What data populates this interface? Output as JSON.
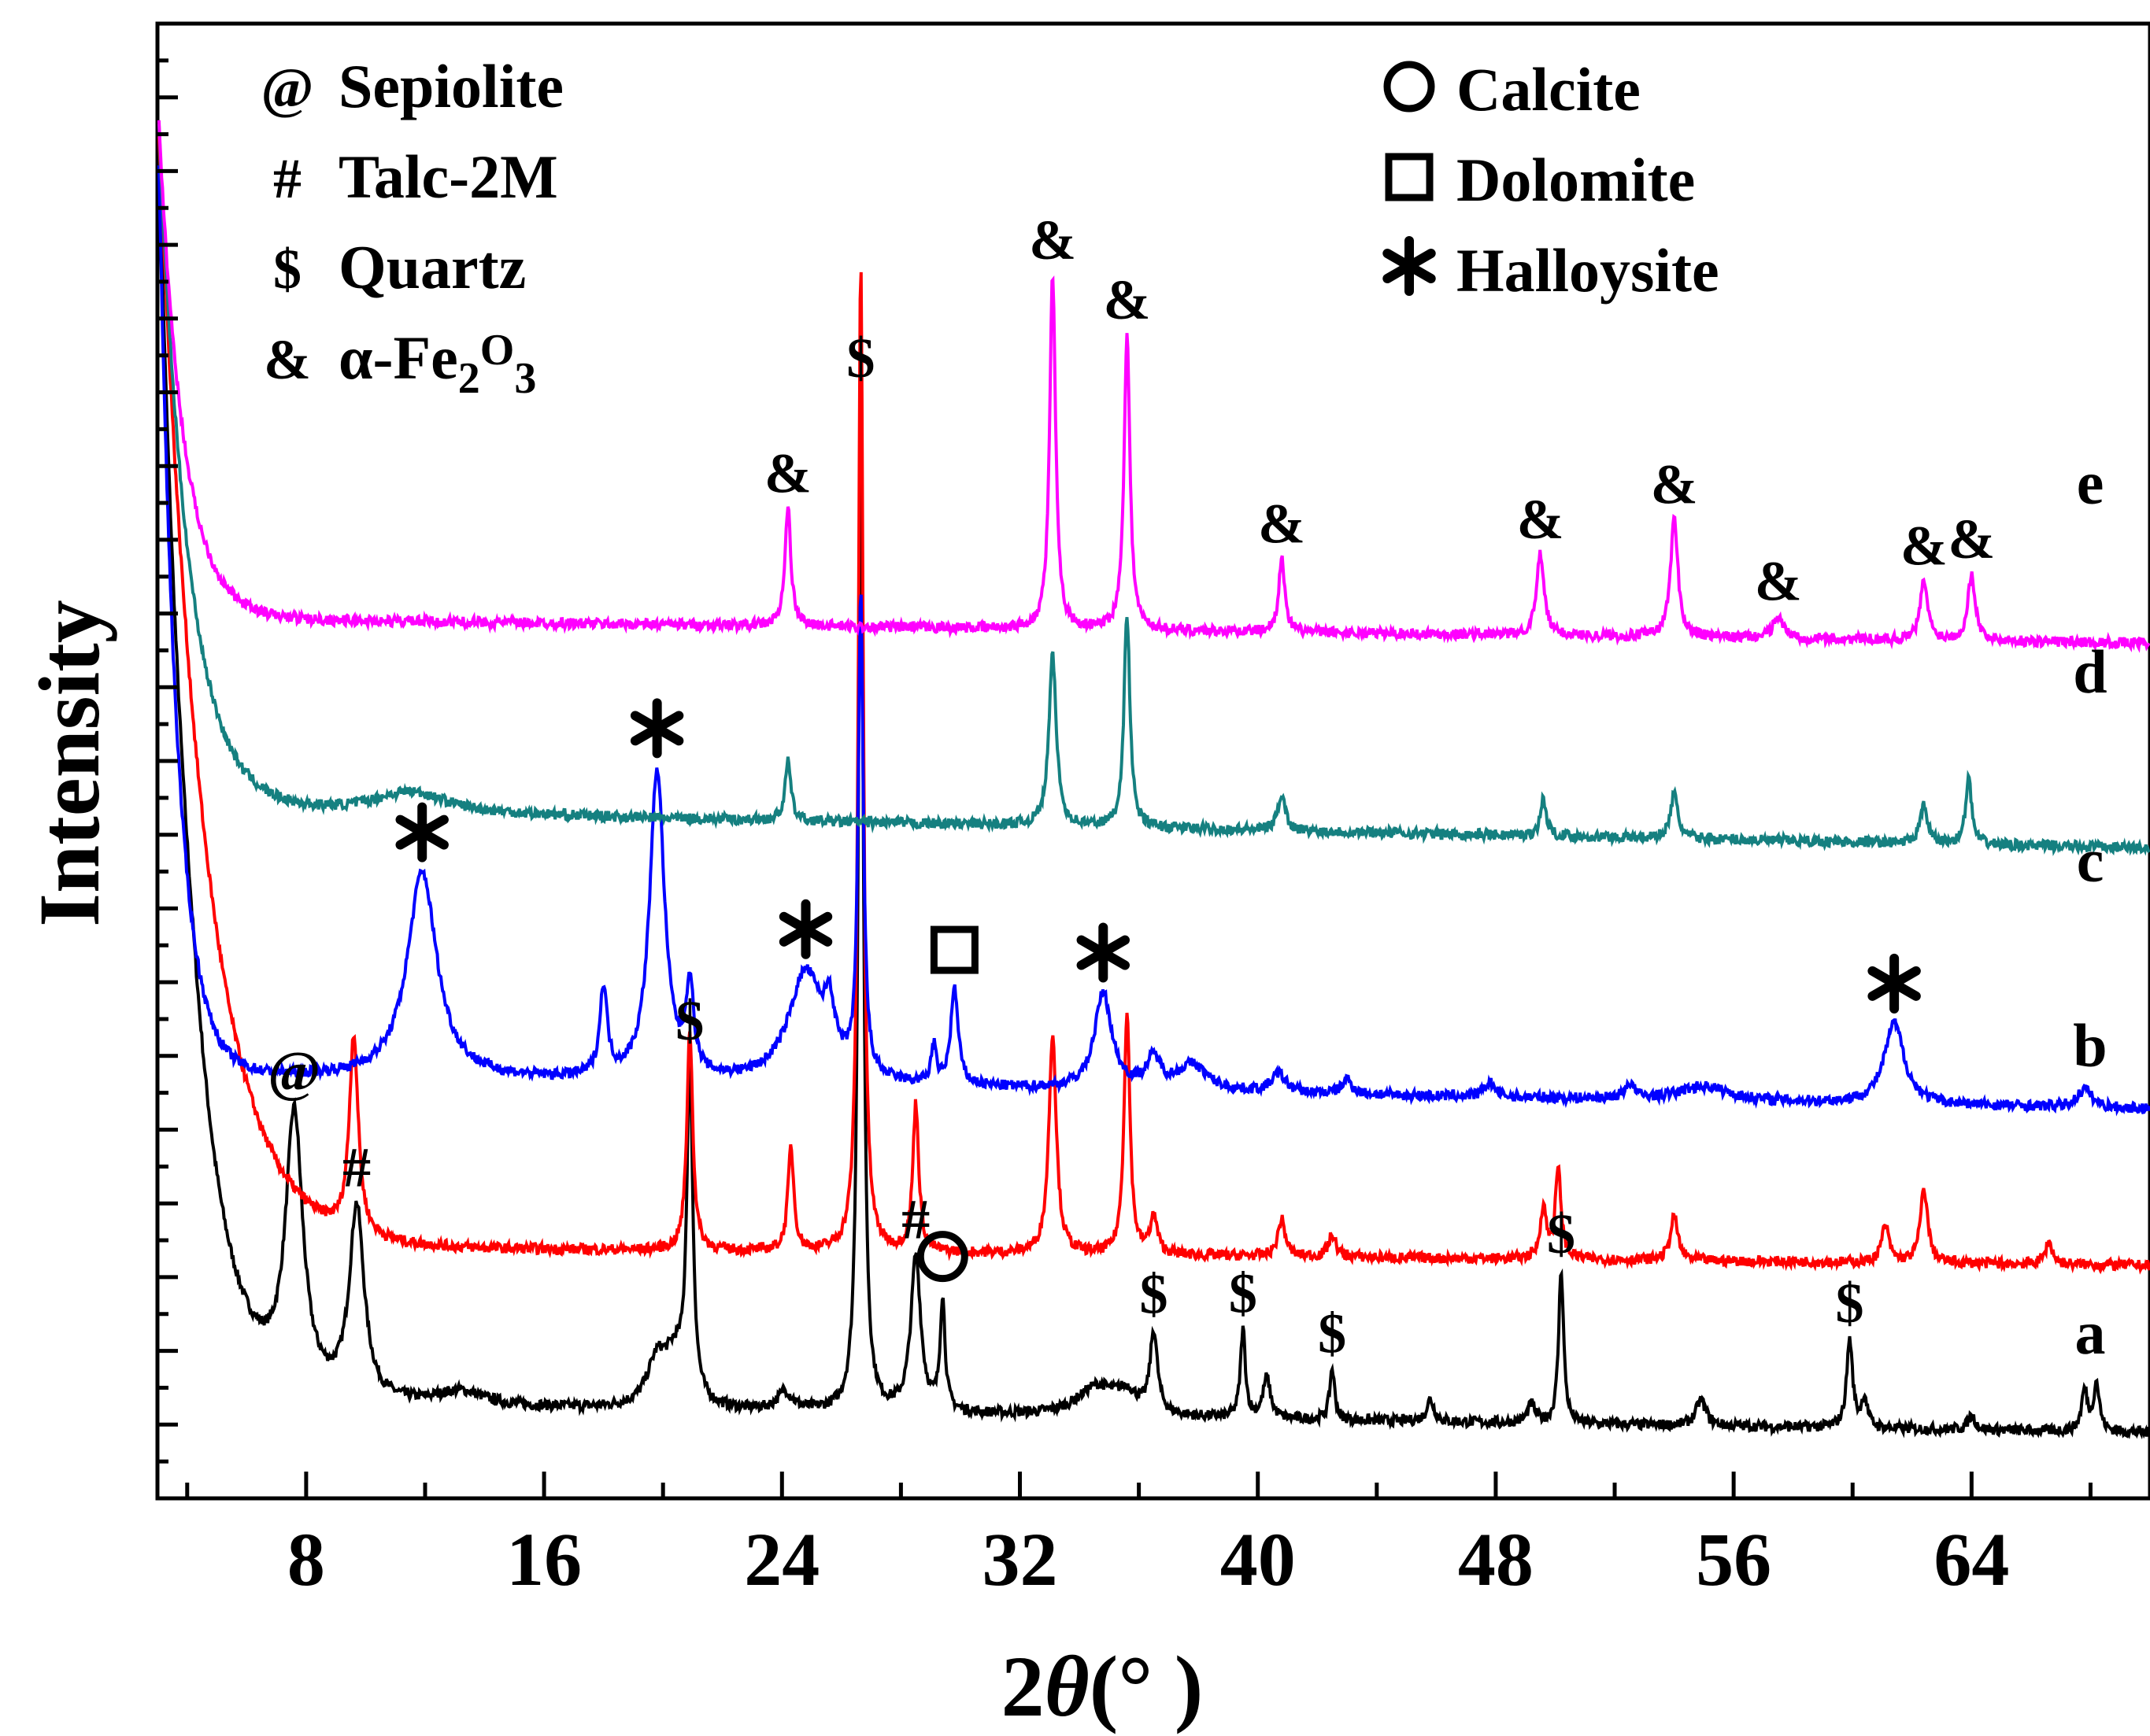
{
  "chart_data": {
    "type": "line",
    "xlabel": "2θ(° )",
    "ylabel": "Intensity",
    "xlim": [
      3,
      70
    ],
    "xticks": [
      8,
      16,
      24,
      32,
      40,
      48,
      56,
      64
    ],
    "xtick_labels": [
      "8",
      "16",
      "24",
      "32",
      "40",
      "48",
      "56",
      "64"
    ],
    "yticks_labelled": false,
    "legend": {
      "left": [
        {
          "symbol": "@",
          "label": "Sepiolite"
        },
        {
          "symbol": "#",
          "label": "Talc-2M"
        },
        {
          "symbol": "$",
          "label": "Quartz"
        },
        {
          "symbol": "&",
          "label": "α-Fe2O3"
        }
      ],
      "right": [
        {
          "symbol": "circle",
          "label": "Calcite"
        },
        {
          "symbol": "square",
          "label": "Dolomite"
        },
        {
          "symbol": "star",
          "label": "Halloysite"
        }
      ]
    },
    "series": [
      {
        "name": "a",
        "color": "#000000",
        "start_level": 1880,
        "base_level": 125,
        "decay": 0.9,
        "slope": -0.6,
        "peaks": [
          [
            4.1,
            45,
            0.6
          ],
          [
            7.6,
            370,
            0.35
          ],
          [
            9.7,
            260,
            0.3
          ],
          [
            13.2,
            20,
            1.0
          ],
          [
            19.8,
            60,
            0.4
          ],
          [
            20.4,
            60,
            0.4
          ],
          [
            20.9,
            450,
            0.12
          ],
          [
            24.1,
            25,
            0.3
          ],
          [
            26.65,
            1380,
            0.1
          ],
          [
            28.5,
            210,
            0.2
          ],
          [
            29.4,
            150,
            0.1
          ],
          [
            34.6,
            40,
            0.8
          ],
          [
            35.6,
            25,
            0.4
          ],
          [
            36.5,
            110,
            0.15
          ],
          [
            39.5,
            120,
            0.1
          ],
          [
            40.3,
            55,
            0.15
          ],
          [
            42.5,
            70,
            0.1
          ],
          [
            45.8,
            30,
            0.15
          ],
          [
            49.2,
            25,
            0.15
          ],
          [
            50.2,
            210,
            0.1
          ],
          [
            54.9,
            35,
            0.2
          ],
          [
            59.9,
            120,
            0.12
          ],
          [
            60.4,
            40,
            0.12
          ],
          [
            64.0,
            20,
            0.15
          ],
          [
            67.8,
            55,
            0.12
          ],
          [
            68.2,
            65,
            0.12
          ]
        ],
        "marker_labels": [
          {
            "symbol": "@",
            "x": 7.6
          },
          {
            "symbol": "#",
            "x": 9.7
          },
          {
            "symbol": "$",
            "x": 20.9
          },
          {
            "symbol": "#",
            "x": 28.5
          },
          {
            "symbol": "circle",
            "x": 29.4
          },
          {
            "symbol": "$",
            "x": 36.5
          },
          {
            "symbol": "$",
            "x": 39.5
          },
          {
            "symbol": "$",
            "x": 42.5
          },
          {
            "symbol": "$",
            "x": 50.2
          },
          {
            "symbol": "$",
            "x": 59.9
          }
        ]
      },
      {
        "name": "b",
        "color": "#ff0000",
        "start_level": 1900,
        "base_level": 340,
        "decay": 0.65,
        "slope": -0.4,
        "peaks": [
          [
            9.6,
            270,
            0.18
          ],
          [
            20.9,
            300,
            0.12
          ],
          [
            24.3,
            140,
            0.12
          ],
          [
            26.65,
            1340,
            0.1
          ],
          [
            28.5,
            200,
            0.12
          ],
          [
            33.1,
            300,
            0.15
          ],
          [
            35.6,
            330,
            0.12
          ],
          [
            36.5,
            50,
            0.15
          ],
          [
            40.8,
            50,
            0.15
          ],
          [
            42.5,
            30,
            0.15
          ],
          [
            49.6,
            70,
            0.12
          ],
          [
            50.1,
            120,
            0.12
          ],
          [
            54.0,
            60,
            0.15
          ],
          [
            61.1,
            50,
            0.15
          ],
          [
            62.4,
            100,
            0.15
          ],
          [
            66.6,
            30,
            0.15
          ]
        ],
        "marker_labels": []
      },
      {
        "name": "c",
        "color": "#0000ff",
        "start_level": 1900,
        "base_level": 570,
        "decay": 1.6,
        "slope": -0.7,
        "peaks": [
          [
            11.9,
            280,
            0.6
          ],
          [
            18.0,
            120,
            0.15
          ],
          [
            19.8,
            420,
            0.3
          ],
          [
            20.9,
            120,
            0.15
          ],
          [
            24.8,
            150,
            0.7
          ],
          [
            25.6,
            70,
            0.2
          ],
          [
            26.65,
            650,
            0.1
          ],
          [
            29.1,
            50,
            0.1
          ],
          [
            29.8,
            130,
            0.15
          ],
          [
            34.8,
            130,
            0.35
          ],
          [
            36.5,
            40,
            0.3
          ],
          [
            37.8,
            35,
            0.6
          ],
          [
            40.7,
            25,
            0.3
          ],
          [
            43.0,
            20,
            0.2
          ],
          [
            47.8,
            20,
            0.2
          ],
          [
            52.5,
            20,
            0.2
          ],
          [
            55.0,
            20,
            1.0
          ],
          [
            61.4,
            110,
            0.4
          ],
          [
            67.8,
            25,
            0.3
          ]
        ],
        "marker_labels": [
          {
            "symbol": "star",
            "x": 11.9
          },
          {
            "symbol": "star",
            "x": 19.8
          },
          {
            "symbol": "star",
            "x": 24.8
          },
          {
            "symbol": "square",
            "x": 29.8
          },
          {
            "symbol": "star",
            "x": 34.8
          },
          {
            "symbol": "star",
            "x": 61.4
          }
        ]
      },
      {
        "name": "d",
        "color": "#158080",
        "start_level": 1900,
        "base_level": 930,
        "decay": 1.0,
        "slope": -0.8,
        "peaks": [
          [
            11.5,
            30,
            1.5
          ],
          [
            24.2,
            80,
            0.12
          ],
          [
            33.1,
            230,
            0.15
          ],
          [
            35.6,
            290,
            0.12
          ],
          [
            40.8,
            50,
            0.15
          ],
          [
            49.6,
            50,
            0.12
          ],
          [
            54.0,
            60,
            0.15
          ],
          [
            62.4,
            50,
            0.15
          ],
          [
            63.9,
            90,
            0.12
          ]
        ],
        "marker_labels": []
      },
      {
        "name": "e",
        "color": "#ff00ff",
        "start_level": 1900,
        "base_level": 1190,
        "decay": 1.2,
        "slope": -0.5,
        "peaks": [
          [
            24.2,
            160,
            0.12
          ],
          [
            33.1,
            480,
            0.12
          ],
          [
            35.6,
            400,
            0.12
          ],
          [
            40.8,
            100,
            0.12
          ],
          [
            49.5,
            110,
            0.15
          ],
          [
            54.0,
            160,
            0.15
          ],
          [
            57.5,
            30,
            0.2
          ],
          [
            62.4,
            80,
            0.15
          ],
          [
            64.0,
            90,
            0.15
          ]
        ],
        "marker_labels": [
          {
            "symbol": "&",
            "x": 24.2
          },
          {
            "symbol": "&",
            "x": 33.1
          },
          {
            "symbol": "&",
            "x": 35.6
          },
          {
            "symbol": "&",
            "x": 40.8
          },
          {
            "symbol": "&",
            "x": 49.5
          },
          {
            "symbol": "&",
            "x": 54.0
          },
          {
            "symbol": "&",
            "x": 57.5
          },
          {
            "symbol": "&",
            "x": 62.4
          },
          {
            "symbol": "&",
            "x": 64.0
          }
        ]
      }
    ],
    "quartz_peak_label": {
      "symbol": "$",
      "x": 26.65
    }
  }
}
